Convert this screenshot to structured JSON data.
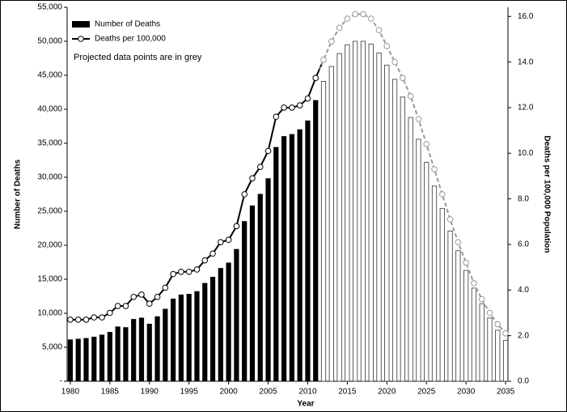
{
  "chart_data": {
    "type": "bar-line",
    "x_label": "Year",
    "y_label": "Number of Deaths",
    "y2_label": "Deaths per 100,000 Population",
    "annotation": "Projected data points are in grey",
    "legend": "top-left",
    "projected_from": 2012,
    "projected_color": "#999999",
    "x": [
      1980,
      1981,
      1982,
      1983,
      1984,
      1985,
      1986,
      1987,
      1988,
      1989,
      1990,
      1991,
      1992,
      1993,
      1994,
      1995,
      1996,
      1997,
      1998,
      1999,
      2000,
      2001,
      2002,
      2003,
      2004,
      2005,
      2006,
      2007,
      2008,
      2009,
      2010,
      2011,
      2012,
      2013,
      2014,
      2015,
      2016,
      2017,
      2018,
      2019,
      2020,
      2021,
      2022,
      2023,
      2024,
      2025,
      2026,
      2027,
      2028,
      2029,
      2030,
      2031,
      2032,
      2033,
      2034,
      2035
    ],
    "series": [
      {
        "name": "Number of Deaths",
        "color": "#000000",
        "type": "bar",
        "values": [
          6100,
          6200,
          6300,
          6500,
          6800,
          7200,
          8000,
          7900,
          9100,
          9300,
          8400,
          9500,
          10600,
          12100,
          12700,
          12800,
          13200,
          14400,
          15300,
          16600,
          17400,
          19400,
          23500,
          25800,
          27500,
          29800,
          34400,
          36000,
          36300,
          37000,
          38300,
          41300,
          44100,
          46300,
          48200,
          49500,
          50000,
          50000,
          49600,
          48300,
          46500,
          44400,
          41800,
          38800,
          35600,
          32200,
          28700,
          25400,
          22100,
          19200,
          16300,
          13700,
          11400,
          9300,
          7500,
          6000
        ]
      },
      {
        "name": "Deaths per 100,000",
        "color": "#000000",
        "type": "line",
        "axis": "y2",
        "values": [
          2.7,
          2.7,
          2.7,
          2.8,
          2.8,
          3.0,
          3.3,
          3.3,
          3.7,
          3.8,
          3.4,
          3.7,
          4.1,
          4.7,
          4.8,
          4.8,
          4.9,
          5.3,
          5.6,
          6.1,
          6.2,
          6.8,
          8.2,
          8.9,
          9.4,
          10.1,
          11.6,
          12.0,
          12.0,
          12.1,
          12.4,
          13.3,
          14.1,
          14.9,
          15.5,
          15.9,
          16.1,
          16.1,
          15.9,
          15.4,
          14.7,
          14.0,
          13.3,
          12.5,
          11.5,
          10.4,
          9.3,
          8.2,
          7.1,
          6.1,
          5.2,
          4.3,
          3.6,
          3.0,
          2.5,
          2.1
        ]
      }
    ],
    "xlim": [
      1979.6,
      2035.3
    ],
    "xticks": [
      1980,
      1985,
      1990,
      1995,
      2000,
      2005,
      2010,
      2015,
      2020,
      2025,
      2030,
      2035
    ],
    "ylim": [
      0,
      55000
    ],
    "yticks": [
      {
        "value": 0,
        "label": "-"
      },
      {
        "value": 5000,
        "label": "5,000"
      },
      {
        "value": 10000,
        "label": "10,000"
      },
      {
        "value": 15000,
        "label": "15,000"
      },
      {
        "value": 20000,
        "label": "20,000"
      },
      {
        "value": 25000,
        "label": "25,000"
      },
      {
        "value": 30000,
        "label": "30,000"
      },
      {
        "value": 35000,
        "label": "35,000"
      },
      {
        "value": 40000,
        "label": "40,000"
      },
      {
        "value": 45000,
        "label": "45,000"
      },
      {
        "value": 50000,
        "label": "50,000"
      },
      {
        "value": 55000,
        "label": "55,000"
      }
    ],
    "y2lim": [
      0,
      16.4
    ],
    "y2ticks": [
      {
        "value": 0,
        "label": "0.0"
      },
      {
        "value": 2,
        "label": "2.0"
      },
      {
        "value": 4,
        "label": "4.0"
      },
      {
        "value": 6,
        "label": "6.0"
      },
      {
        "value": 8,
        "label": "8.0"
      },
      {
        "value": 10,
        "label": "10.0"
      },
      {
        "value": 12,
        "label": "12.0"
      },
      {
        "value": 14,
        "label": "14.0"
      },
      {
        "value": 16,
        "label": "16.0"
      }
    ]
  }
}
